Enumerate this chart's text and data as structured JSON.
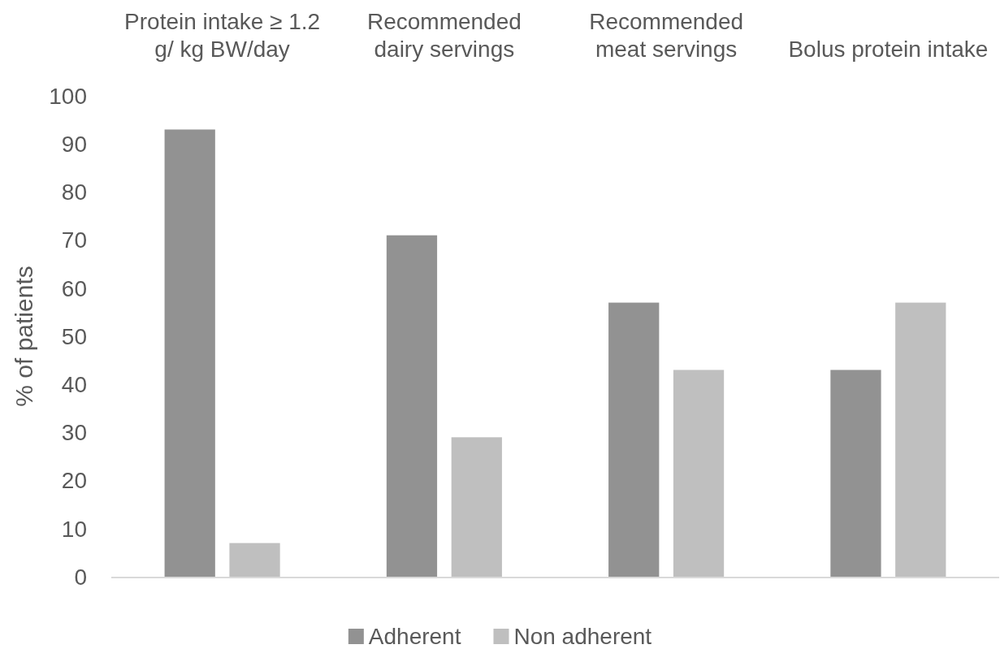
{
  "chart_data": {
    "type": "bar",
    "ylabel": "% of patients",
    "categories": [
      "Protein intake ≥ 1.2\ng/ kg BW/day",
      "Recommended\ndairy servings",
      "Recommended\nmeat servings",
      "Bolus protein intake"
    ],
    "series": [
      {
        "name": "Adherent",
        "color": "#929292",
        "values": [
          93,
          71,
          57,
          43
        ]
      },
      {
        "name": "Non adherent",
        "color": "#bfbfbf",
        "values": [
          7,
          29,
          43,
          57
        ]
      }
    ],
    "ylim": [
      0,
      100
    ],
    "yticks": [
      0,
      10,
      20,
      30,
      40,
      50,
      60,
      70,
      80,
      90,
      100
    ],
    "legend": "bottom"
  }
}
